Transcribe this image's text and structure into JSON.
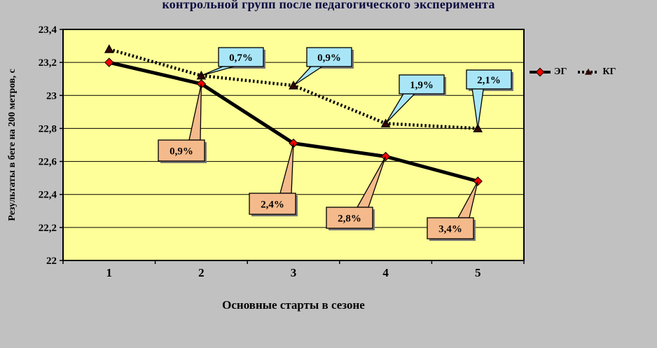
{
  "title": "контрольной групп после педагогического эксперимента",
  "legend": {
    "eg_label": "ЭГ",
    "kg_label": "КГ"
  },
  "colors": {
    "outer_bg": "#c1c1c1",
    "plot_bg": "#ffff99",
    "eg_line": "#000000",
    "eg_marker": "#ff0000",
    "kg_line": "#000000",
    "kg_marker": "#330505",
    "callout_kg_fill": "#a8e6f7",
    "callout_eg_fill": "#f5ba8b",
    "title_color": "#0c0c40"
  },
  "chart_data": {
    "type": "line",
    "title": "контрольной групп после педагогического эксперимента",
    "categories": [
      "1",
      "2",
      "3",
      "4",
      "5"
    ],
    "series": [
      {
        "name": "ЭГ",
        "values": [
          23.2,
          23.07,
          22.71,
          22.63,
          22.48
        ],
        "color": "#000000",
        "marker": "diamond",
        "marker_color": "#ff0000",
        "line_style": "solid"
      },
      {
        "name": "КГ",
        "values": [
          23.28,
          23.12,
          23.06,
          22.83,
          22.8
        ],
        "color": "#000000",
        "marker": "triangle",
        "marker_color": "#330505",
        "line_style": "dotted"
      }
    ],
    "xlabel": "Основные старты в сезоне",
    "ylabel": "Результаты в беге на 200 метров, с",
    "ylim": [
      22,
      23.4
    ],
    "ytick_step": 0.2,
    "ytick_labels": [
      "22",
      "22,2",
      "22,4",
      "22,6",
      "22,8",
      "23",
      "23,2",
      "23,4"
    ],
    "grid": "horizontal",
    "plot_bg": "#ffff99",
    "legend_position": "right",
    "annotations": [
      {
        "label": "0,7%",
        "series": "КГ",
        "point_index": 1,
        "fill": "#a8e6f7"
      },
      {
        "label": "0,9%",
        "series": "КГ",
        "point_index": 2,
        "fill": "#a8e6f7"
      },
      {
        "label": "1,9%",
        "series": "КГ",
        "point_index": 3,
        "fill": "#a8e6f7"
      },
      {
        "label": "2,1%",
        "series": "КГ",
        "point_index": 4,
        "fill": "#a8e6f7"
      },
      {
        "label": "0,9%",
        "series": "ЭГ",
        "point_index": 1,
        "fill": "#f5ba8b"
      },
      {
        "label": "2,4%",
        "series": "ЭГ",
        "point_index": 2,
        "fill": "#f5ba8b"
      },
      {
        "label": "2,8%",
        "series": "ЭГ",
        "point_index": 3,
        "fill": "#f5ba8b"
      },
      {
        "label": "3,4%",
        "series": "ЭГ",
        "point_index": 4,
        "fill": "#f5ba8b"
      }
    ]
  }
}
